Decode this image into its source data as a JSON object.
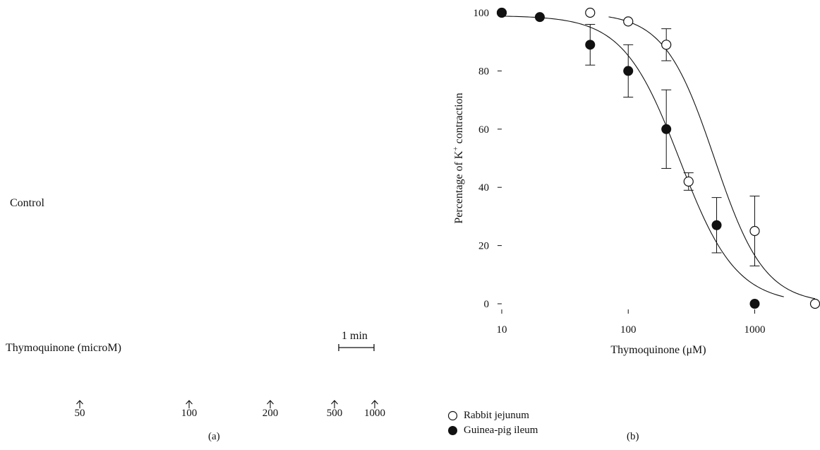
{
  "panel_a": {
    "control_label": "Control",
    "treatment_label": "Thymoquinone (microM)",
    "scale_bar_label": "1 min",
    "dose_marks": [
      "50",
      "100",
      "200",
      "500",
      "1000"
    ],
    "caption": "(a)"
  },
  "panel_b": {
    "caption": "(b)",
    "legend": [
      {
        "label": "Rabbit jejunum",
        "marker": "open-circle"
      },
      {
        "label": "Guinea-pig ileum",
        "marker": "filled-circle"
      }
    ]
  },
  "chart_data": {
    "type": "scatter",
    "title": "",
    "xlabel": "Thymoquinone (μM)",
    "ylabel_prefix": "Percentage of K",
    "ylabel_sup": "+",
    "ylabel_suffix": " contraction",
    "x_scale": "log",
    "xlim": [
      10,
      3000
    ],
    "ylim": [
      0,
      100
    ],
    "x_ticks": [
      10,
      100,
      1000
    ],
    "x_tick_labels": [
      "10",
      "100",
      "1000"
    ],
    "y_ticks": [
      0,
      20,
      40,
      60,
      80,
      100
    ],
    "y_tick_labels": [
      "0",
      "20",
      "40",
      "60",
      "80",
      "100"
    ],
    "grid": false,
    "legend_position": "bottom-left",
    "series": [
      {
        "name": "Rabbit jejunum",
        "marker": "open",
        "points": [
          {
            "x": 10,
            "y": 100
          },
          {
            "x": 50,
            "y": 100
          },
          {
            "x": 100,
            "y": 97
          },
          {
            "x": 200,
            "y": 89,
            "err": 5.5
          },
          {
            "x": 300,
            "y": 42,
            "err": 3
          },
          {
            "x": 1000,
            "y": 25,
            "err": 12
          },
          {
            "x": 3000,
            "y": 0
          }
        ],
        "fit": {
          "top": 100,
          "ic50": 480,
          "hill": 2.2,
          "x_start": 70,
          "x_end": 3000
        }
      },
      {
        "name": "Guinea-pig ileum",
        "marker": "filled",
        "points": [
          {
            "x": 10,
            "y": 100
          },
          {
            "x": 20,
            "y": 98.5
          },
          {
            "x": 50,
            "y": 89,
            "err": 7
          },
          {
            "x": 100,
            "y": 80,
            "err": 9
          },
          {
            "x": 200,
            "y": 60,
            "err": 13.5
          },
          {
            "x": 500,
            "y": 27,
            "err": 9.5
          },
          {
            "x": 1000,
            "y": 0
          }
        ],
        "fit": {
          "top": 99,
          "ic50": 255,
          "hill": 1.95,
          "x_start": 10,
          "x_end": 1700
        }
      }
    ]
  }
}
